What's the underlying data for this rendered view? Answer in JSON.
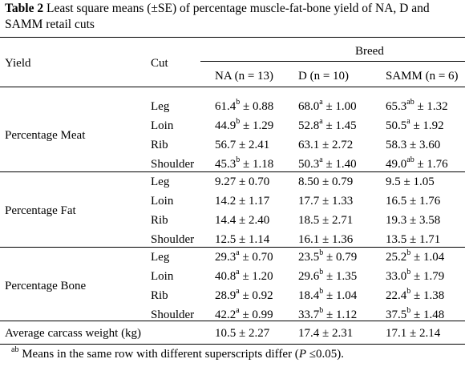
{
  "caption": {
    "label": "Table 2",
    "text": " Least square means (±SE) of percentage muscle-fat-bone yield of NA, D and SAMM retail cuts"
  },
  "header": {
    "yield": "Yield",
    "cut": "Cut",
    "breed": "Breed",
    "columns": [
      "NA (n = 13)",
      "D (n = 10)",
      "SAMM (n = 6)"
    ]
  },
  "groups": [
    {
      "label": "Percentage Meat",
      "rows": [
        {
          "cut": "Leg",
          "cells": [
            {
              "v": "61.4",
              "s": "b",
              "e": " ± 0.88"
            },
            {
              "v": "68.0",
              "s": "a",
              "e": " ± 1.00"
            },
            {
              "v": "65.3",
              "s": "ab",
              "e": " ± 1.32"
            }
          ]
        },
        {
          "cut": "Loin",
          "cells": [
            {
              "v": "44.9",
              "s": "b",
              "e": " ± 1.29"
            },
            {
              "v": "52.8",
              "s": "a",
              "e": " ± 1.45"
            },
            {
              "v": "50.5",
              "s": "a",
              "e": " ± 1.92"
            }
          ]
        },
        {
          "cut": "Rib",
          "cells": [
            {
              "v": "56.7",
              "s": "",
              "e": " ± 2.41"
            },
            {
              "v": "63.1",
              "s": "",
              "e": " ± 2.72"
            },
            {
              "v": "58.3",
              "s": "",
              "e": " ± 3.60"
            }
          ]
        },
        {
          "cut": "Shoulder",
          "cells": [
            {
              "v": "45.3",
              "s": "b",
              "e": " ± 1.18"
            },
            {
              "v": "50.3",
              "s": "a",
              "e": " ± 1.40"
            },
            {
              "v": "49.0",
              "s": "ab",
              "e": " ± 1.76"
            }
          ]
        }
      ]
    },
    {
      "label": "Percentage Fat",
      "rows": [
        {
          "cut": "Leg",
          "cells": [
            {
              "v": "9.27",
              "s": "",
              "e": " ± 0.70"
            },
            {
              "v": "8.50",
              "s": "",
              "e": " ± 0.79"
            },
            {
              "v": "9.5",
              "s": "",
              "e": " ± 1.05"
            }
          ]
        },
        {
          "cut": "Loin",
          "cells": [
            {
              "v": "14.2",
              "s": "",
              "e": " ± 1.17"
            },
            {
              "v": "17.7",
              "s": "",
              "e": " ± 1.33"
            },
            {
              "v": "16.5",
              "s": "",
              "e": " ± 1.76"
            }
          ]
        },
        {
          "cut": "Rib",
          "cells": [
            {
              "v": "14.4",
              "s": "",
              "e": " ± 2.40"
            },
            {
              "v": "18.5",
              "s": "",
              "e": " ± 2.71"
            },
            {
              "v": "19.3",
              "s": "",
              "e": " ± 3.58"
            }
          ]
        },
        {
          "cut": "Shoulder",
          "cells": [
            {
              "v": "12.5",
              "s": "",
              "e": " ± 1.14"
            },
            {
              "v": "16.1",
              "s": "",
              "e": " ± 1.36"
            },
            {
              "v": "13.5",
              "s": "",
              "e": " ± 1.71"
            }
          ]
        }
      ]
    },
    {
      "label": "Percentage Bone",
      "rows": [
        {
          "cut": "Leg",
          "cells": [
            {
              "v": "29.3",
              "s": "a",
              "e": " ± 0.70"
            },
            {
              "v": "23.5",
              "s": "b",
              "e": " ± 0.79"
            },
            {
              "v": "25.2",
              "s": "b",
              "e": " ± 1.04"
            }
          ]
        },
        {
          "cut": "Loin",
          "cells": [
            {
              "v": "40.8",
              "s": "a",
              "e": " ± 1.20"
            },
            {
              "v": "29.6",
              "s": "b",
              "e": " ± 1.35"
            },
            {
              "v": "33.0",
              "s": "b",
              "e": " ± 1.79"
            }
          ]
        },
        {
          "cut": "Rib",
          "cells": [
            {
              "v": "28.9",
              "s": "a",
              "e": " ± 0.92"
            },
            {
              "v": "18.4",
              "s": "b",
              "e": " ± 1.04"
            },
            {
              "v": "22.4",
              "s": "b",
              "e": " ± 1.38"
            }
          ]
        },
        {
          "cut": "Shoulder",
          "cells": [
            {
              "v": "42.2",
              "s": "a",
              "e": " ± 0.99"
            },
            {
              "v": "33.7",
              "s": "b",
              "e": " ± 1.12"
            },
            {
              "v": "37.5",
              "s": "b",
              "e": " ± 1.48"
            }
          ]
        }
      ]
    }
  ],
  "carcass": {
    "label": "Average carcass weight (kg)",
    "cells": [
      "10.5 ± 2.27",
      "17.4 ± 2.31",
      "17.1 ± 2.14"
    ]
  },
  "footnote": {
    "sup": "ab",
    "text1": " Means in the same row with different superscripts differ (",
    "italic": "P",
    "text2": " ≤0.05)."
  }
}
